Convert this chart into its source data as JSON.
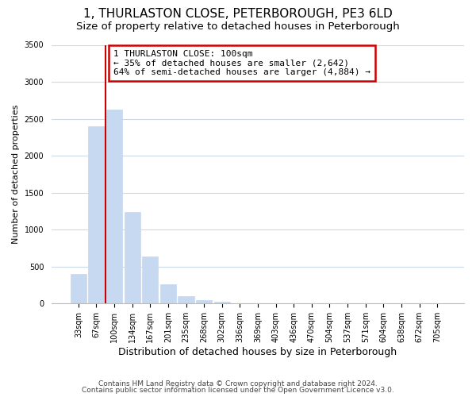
{
  "title": "1, THURLASTON CLOSE, PETERBOROUGH, PE3 6LD",
  "subtitle": "Size of property relative to detached houses in Peterborough",
  "xlabel": "Distribution of detached houses by size in Peterborough",
  "ylabel": "Number of detached properties",
  "categories": [
    "33sqm",
    "67sqm",
    "100sqm",
    "134sqm",
    "167sqm",
    "201sqm",
    "235sqm",
    "268sqm",
    "302sqm",
    "336sqm",
    "369sqm",
    "403sqm",
    "436sqm",
    "470sqm",
    "504sqm",
    "537sqm",
    "571sqm",
    "604sqm",
    "638sqm",
    "672sqm",
    "705sqm"
  ],
  "values": [
    400,
    2400,
    2620,
    1240,
    640,
    260,
    100,
    50,
    20,
    0,
    0,
    0,
    0,
    0,
    0,
    0,
    0,
    0,
    0,
    0,
    0
  ],
  "bar_color": "#c6d9f0",
  "vline_x_index": 2,
  "vline_color": "#cc0000",
  "ylim": [
    0,
    3500
  ],
  "yticks": [
    0,
    500,
    1000,
    1500,
    2000,
    2500,
    3000,
    3500
  ],
  "annotation_box_text": "1 THURLASTON CLOSE: 100sqm\n← 35% of detached houses are smaller (2,642)\n64% of semi-detached houses are larger (4,884) →",
  "footer_line1": "Contains HM Land Registry data © Crown copyright and database right 2024.",
  "footer_line2": "Contains public sector information licensed under the Open Government Licence v3.0.",
  "title_fontsize": 11,
  "subtitle_fontsize": 9.5,
  "xlabel_fontsize": 9,
  "ylabel_fontsize": 8,
  "tick_fontsize": 7,
  "footer_fontsize": 6.5,
  "background_color": "#ffffff",
  "grid_color": "#ccd9e8",
  "annotation_fontsize": 8,
  "annotation_edge_color": "#cc0000",
  "annotation_linewidth": 1.8
}
